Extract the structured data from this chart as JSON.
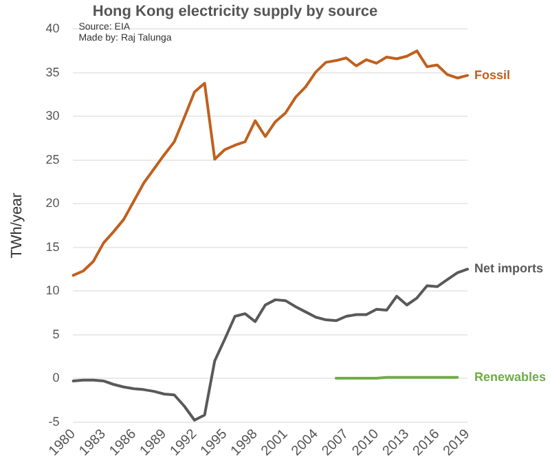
{
  "chart_data": {
    "type": "line",
    "title": "Hong Kong electricity supply by source",
    "ylabel": "TWh/year",
    "annotations": [
      "Source: EIA",
      "Made by: Raj Talunga"
    ],
    "categories": [
      "1980",
      null,
      null,
      "1983",
      null,
      null,
      "1986",
      null,
      null,
      "1989",
      null,
      null,
      "1992",
      null,
      null,
      "1995",
      null,
      null,
      "1998",
      null,
      null,
      "2001",
      null,
      null,
      "2004",
      null,
      null,
      "2007",
      null,
      null,
      "2010",
      null,
      null,
      "2013",
      null,
      null,
      "2016",
      null,
      null,
      "2019"
    ],
    "series": [
      {
        "name": "Fossil",
        "color": "#c0601e",
        "values": [
          11.8,
          12.3,
          13.4,
          15.5,
          16.8,
          18.2,
          20.3,
          22.4,
          24.0,
          25.6,
          27.1,
          29.9,
          32.8,
          33.8,
          25.1,
          26.2,
          26.7,
          27.1,
          29.5,
          27.7,
          29.4,
          30.4,
          32.2,
          33.4,
          35.1,
          36.2,
          36.4,
          36.7,
          35.8,
          36.5,
          36.1,
          36.8,
          36.6,
          36.9,
          37.5,
          35.7,
          35.9,
          34.8,
          34.4,
          34.7
        ]
      },
      {
        "name": "Net imports",
        "color": "#595959",
        "values": [
          -0.3,
          -0.2,
          -0.2,
          -0.3,
          -0.7,
          -1.0,
          -1.2,
          -1.3,
          -1.5,
          -1.8,
          -1.9,
          -3.2,
          -4.8,
          -4.2,
          2.0,
          4.5,
          7.1,
          7.4,
          6.5,
          8.4,
          9.0,
          8.9,
          8.2,
          7.6,
          7.0,
          6.7,
          6.6,
          7.1,
          7.3,
          7.3,
          7.9,
          7.8,
          9.4,
          8.4,
          9.2,
          10.6,
          10.5,
          11.3,
          12.1,
          12.5
        ]
      },
      {
        "name": "Renewables",
        "color": "#70ad47",
        "values": [
          null,
          null,
          null,
          null,
          null,
          null,
          null,
          null,
          null,
          null,
          null,
          null,
          null,
          null,
          null,
          null,
          null,
          null,
          null,
          null,
          null,
          null,
          null,
          null,
          null,
          null,
          0,
          0,
          0,
          0,
          0,
          0.1,
          0.1,
          0.1,
          0.1,
          0.1,
          0.1,
          0.1,
          0.1,
          null
        ]
      }
    ],
    "ylim": [
      -5,
      40
    ],
    "yticks": [
      -5,
      0,
      5,
      10,
      15,
      20,
      25,
      30,
      35,
      40
    ],
    "grid": "y",
    "legend": false,
    "marker": "none",
    "line_style": "solid"
  }
}
